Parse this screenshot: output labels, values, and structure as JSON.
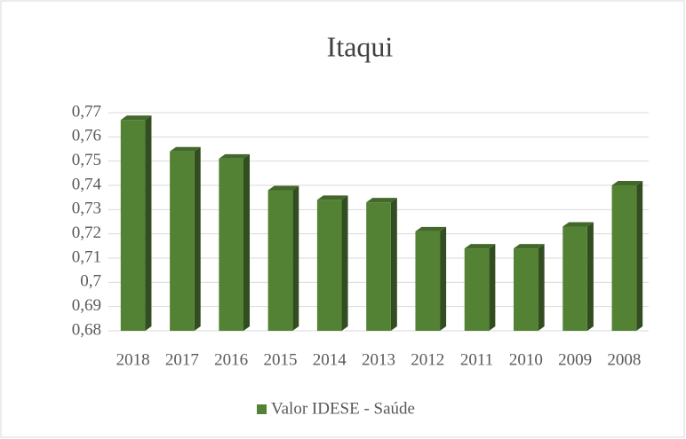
{
  "chart_data": {
    "type": "bar3d",
    "title": "Itaqui",
    "categories": [
      "2018",
      "2017",
      "2016",
      "2015",
      "2014",
      "2013",
      "2012",
      "2011",
      "2010",
      "2009",
      "2008"
    ],
    "series": [
      {
        "name": "Valor IDESE - Saúde",
        "color": "#548235",
        "values": [
          0.767,
          0.754,
          0.751,
          0.738,
          0.734,
          0.733,
          0.721,
          0.714,
          0.714,
          0.723,
          0.74
        ]
      }
    ],
    "ylim": [
      0.68,
      0.77
    ],
    "yticks": [
      {
        "value": 0.68,
        "label": "0,68"
      },
      {
        "value": 0.69,
        "label": "0,69"
      },
      {
        "value": 0.7,
        "label": "0,7"
      },
      {
        "value": 0.71,
        "label": "0,71"
      },
      {
        "value": 0.72,
        "label": "0,72"
      },
      {
        "value": 0.73,
        "label": "0,73"
      },
      {
        "value": 0.74,
        "label": "0,74"
      },
      {
        "value": 0.75,
        "label": "0,75"
      },
      {
        "value": 0.76,
        "label": "0,76"
      },
      {
        "value": 0.77,
        "label": "0,77"
      }
    ],
    "grid": true,
    "legend": "bottom"
  }
}
